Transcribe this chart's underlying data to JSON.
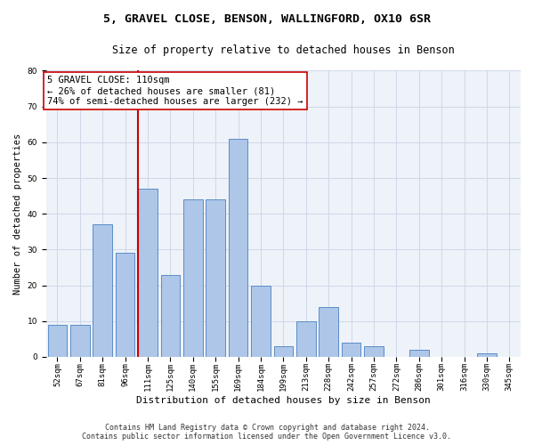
{
  "title_line1": "5, GRAVEL CLOSE, BENSON, WALLINGFORD, OX10 6SR",
  "title_line2": "Size of property relative to detached houses in Benson",
  "xlabel": "Distribution of detached houses by size in Benson",
  "ylabel": "Number of detached properties",
  "categories": [
    "52sqm",
    "67sqm",
    "81sqm",
    "96sqm",
    "111sqm",
    "125sqm",
    "140sqm",
    "155sqm",
    "169sqm",
    "184sqm",
    "199sqm",
    "213sqm",
    "228sqm",
    "242sqm",
    "257sqm",
    "272sqm",
    "286sqm",
    "301sqm",
    "316sqm",
    "330sqm",
    "345sqm"
  ],
  "values": [
    9,
    9,
    37,
    29,
    47,
    23,
    44,
    44,
    61,
    20,
    3,
    10,
    14,
    4,
    3,
    0,
    2,
    0,
    0,
    1,
    0
  ],
  "bar_color": "#aec6e8",
  "bar_edge_color": "#5b8dc8",
  "grid_color": "#d0d8e8",
  "background_color": "#eef2f9",
  "annotation_text": "5 GRAVEL CLOSE: 110sqm\n← 26% of detached houses are smaller (81)\n74% of semi-detached houses are larger (232) →",
  "vline_x_index": 4,
  "vline_color": "#cc0000",
  "annotation_box_color": "#ffffff",
  "annotation_box_edge": "#cc0000",
  "ylim": [
    0,
    80
  ],
  "yticks": [
    0,
    10,
    20,
    30,
    40,
    50,
    60,
    70,
    80
  ],
  "footer_line1": "Contains HM Land Registry data © Crown copyright and database right 2024.",
  "footer_line2": "Contains public sector information licensed under the Open Government Licence v3.0.",
  "title_fontsize": 9.5,
  "subtitle_fontsize": 8.5,
  "xlabel_fontsize": 8,
  "ylabel_fontsize": 7.5,
  "tick_fontsize": 6.5,
  "footer_fontsize": 6,
  "annotation_fontsize": 7.5
}
